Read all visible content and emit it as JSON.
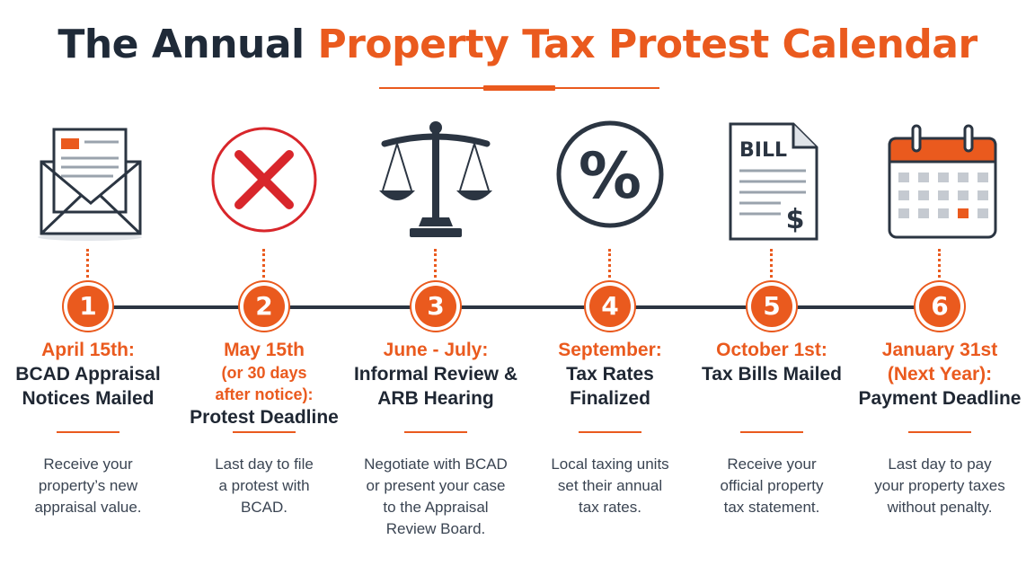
{
  "title": {
    "part1": "The Annual",
    "part2": "Property Tax Protest Calendar"
  },
  "colors": {
    "accent": "#ea5a1e",
    "dark": "#2b3542",
    "text": "#1f2733"
  },
  "steps": [
    {
      "number": "1",
      "icon": "envelope-letter-icon",
      "date": [
        "April 15th:"
      ],
      "event": [
        "BCAD Appraisal",
        "Notices Mailed"
      ],
      "description": [
        "Receive your",
        "property’s new",
        "appraisal value."
      ]
    },
    {
      "number": "2",
      "icon": "x-circle-icon",
      "date": [
        "May 15th"
      ],
      "date_note": [
        "(or 30 days",
        "after notice):"
      ],
      "event": [
        "Protest Deadline"
      ],
      "description": [
        "Last day to file",
        "a protest with",
        "BCAD."
      ]
    },
    {
      "number": "3",
      "icon": "scales-icon",
      "date": [
        "June - July:"
      ],
      "event": [
        "Informal Review &",
        "ARB Hearing"
      ],
      "description": [
        "Negotiate with BCAD",
        "or present your case",
        "to the Appraisal",
        "Review Board."
      ]
    },
    {
      "number": "4",
      "icon": "percent-icon",
      "date": [
        "September:"
      ],
      "event": [
        "Tax Rates",
        "Finalized"
      ],
      "description": [
        "Local taxing units",
        "set their annual",
        "tax rates."
      ]
    },
    {
      "number": "5",
      "icon": "bill-document-icon",
      "icon_text": "BILL",
      "icon_symbol": "$",
      "date": [
        "October 1st:"
      ],
      "event": [
        "Tax Bills Mailed"
      ],
      "description": [
        "Receive your",
        "official property",
        "tax statement."
      ]
    },
    {
      "number": "6",
      "icon": "calendar-icon",
      "date": [
        "January 31st",
        "(Next Year):"
      ],
      "event": [
        "Payment Deadline"
      ],
      "description": [
        "Last day to pay",
        "your property taxes",
        "without penalty."
      ]
    }
  ]
}
